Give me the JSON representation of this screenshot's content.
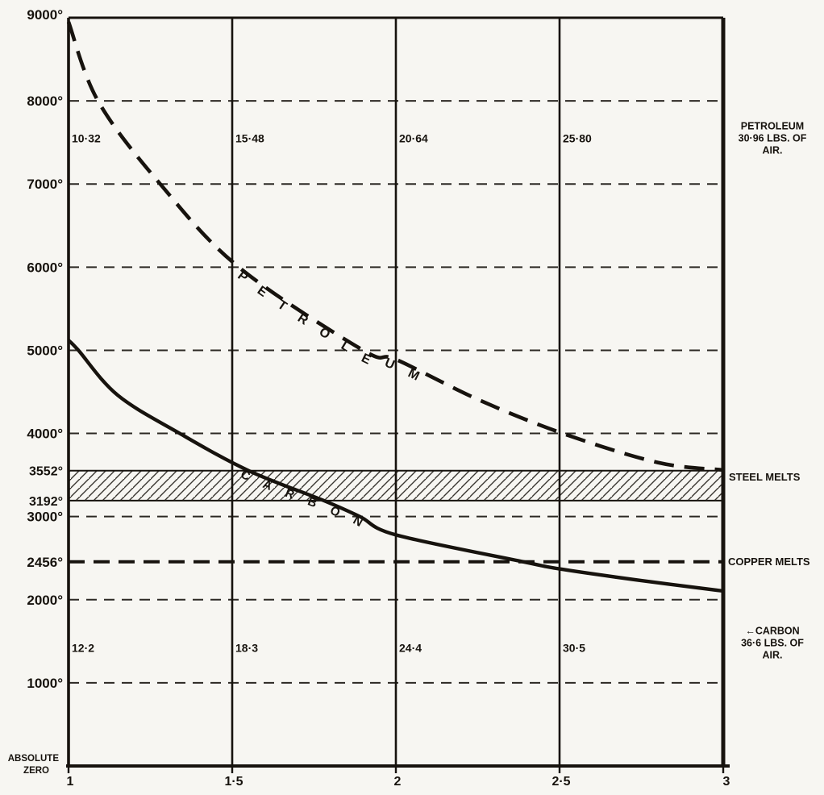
{
  "page": {
    "paper_color": "#f7f6f2",
    "ink_color": "#17130e"
  },
  "chart_data": {
    "type": "line",
    "title": "",
    "x_axis": {
      "min": 1,
      "max": 3,
      "ticks": [
        {
          "v": 1,
          "label": "1"
        },
        {
          "v": 1.5,
          "label": "1·5"
        },
        {
          "v": 2,
          "label": "2"
        },
        {
          "v": 2.5,
          "label": "2·5"
        },
        {
          "v": 3,
          "label": "3"
        }
      ],
      "gridlines": [
        1.5,
        2,
        2.5
      ]
    },
    "y_axis": {
      "min": 0,
      "max": 9000,
      "ticks": [
        {
          "v": 9000,
          "label": "9000°"
        },
        {
          "v": 8000,
          "label": "8000°"
        },
        {
          "v": 7000,
          "label": "7000°"
        },
        {
          "v": 6000,
          "label": "6000°"
        },
        {
          "v": 5000,
          "label": "5000°"
        },
        {
          "v": 4000,
          "label": "4000°"
        },
        {
          "v": 3552,
          "label": "3552°"
        },
        {
          "v": 3192,
          "label": "3192°"
        },
        {
          "v": 3000,
          "label": "3000°"
        },
        {
          "v": 2456,
          "label": "2456°"
        },
        {
          "v": 2000,
          "label": "2000°"
        },
        {
          "v": 1000,
          "label": "1000°"
        }
      ],
      "dashed_gridlines": [
        8000,
        7000,
        6000,
        5000,
        4000,
        3000,
        2000,
        1000
      ],
      "zero_label_lines": [
        "ABSOLUTE",
        "ZERO"
      ]
    },
    "series": [
      {
        "name": "PETROLEUM",
        "line_style": "dashed",
        "points": [
          [
            1.0,
            8950
          ],
          [
            1.09,
            8000
          ],
          [
            1.28,
            7000
          ],
          [
            1.52,
            6000
          ],
          [
            1.9,
            5000
          ],
          [
            2.0,
            4890
          ],
          [
            2.25,
            4410
          ],
          [
            2.51,
            4000
          ],
          [
            2.8,
            3650
          ],
          [
            3.0,
            3560
          ]
        ]
      },
      {
        "name": "CARBON",
        "line_style": "solid",
        "points": [
          [
            1.0,
            5120
          ],
          [
            1.03,
            5000
          ],
          [
            1.15,
            4460
          ],
          [
            1.34,
            4000
          ],
          [
            1.55,
            3552
          ],
          [
            1.78,
            3192
          ],
          [
            1.89,
            3000
          ],
          [
            2.0,
            2780
          ],
          [
            2.39,
            2456
          ],
          [
            2.5,
            2370
          ],
          [
            2.75,
            2230
          ],
          [
            3.0,
            2105
          ]
        ]
      }
    ],
    "band": {
      "from": 3192,
      "to": 3552,
      "pattern": "diagonal-hatch",
      "right_label": "STEEL MELTS",
      "label_anchor_temp": 3470
    },
    "reference_line": {
      "value": 2456,
      "style": "bold-dashed",
      "right_label": "COPPER MELTS"
    },
    "right_annotations": [
      {
        "lines": [
          "PETROLEUM",
          "30·96 LBS. OF",
          "AIR."
        ],
        "anchor_temp": 7550
      },
      {
        "lines": [
          "←CARBON",
          "36·6 LBS. OF",
          "AIR."
        ],
        "anchor_temp": 1480
      }
    ],
    "inner_label_rows": [
      {
        "anchor_temp": 7550,
        "labels": [
          {
            "x": 1,
            "text": "10·32"
          },
          {
            "x": 1.5,
            "text": "15·48"
          },
          {
            "x": 2,
            "text": "20·64"
          },
          {
            "x": 2.5,
            "text": "25·80"
          }
        ]
      },
      {
        "anchor_temp": 1420,
        "labels": [
          {
            "x": 1,
            "text": "12·2"
          },
          {
            "x": 1.5,
            "text": "18·3"
          },
          {
            "x": 2,
            "text": "24·4"
          },
          {
            "x": 2.5,
            "text": "30·5"
          }
        ]
      }
    ]
  }
}
